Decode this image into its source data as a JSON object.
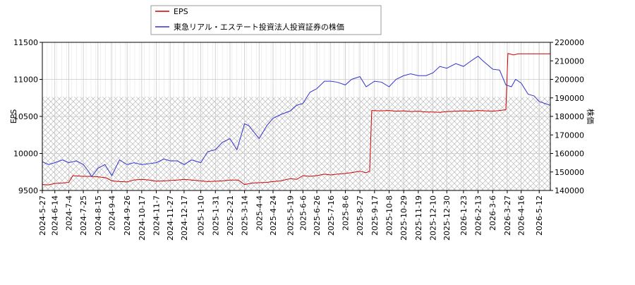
{
  "chart_data": {
    "type": "line",
    "legend": {
      "placement": "top-left",
      "entries": [
        {
          "label": "EPS",
          "color": "#cc0000"
        },
        {
          "label": "東急リアル・エステート投資法人投資証券の株価",
          "color": "#3333cc"
        }
      ]
    },
    "ylabel_left": "EPS",
    "ylabel_right": "株価",
    "ylim_left": [
      9500,
      11500
    ],
    "ylim_right": [
      140000,
      220000
    ],
    "yticks_left": [
      "9500",
      "10000",
      "10500",
      "11000",
      "11500"
    ],
    "yticks_right": [
      "140000",
      "150000",
      "160000",
      "170000",
      "180000",
      "190000",
      "200000",
      "210000",
      "220000"
    ],
    "xlim": [
      "2024-05-27",
      "2026-05-28"
    ],
    "xticks": [
      "2024-5-27",
      "2024-6-14",
      "2024-7-4",
      "2024-7-25",
      "2024-8-15",
      "2024-9-4",
      "2024-9-26",
      "2024-10-17",
      "2024-11-7",
      "2024-11-27",
      "2024-12-17",
      "2025-1-10",
      "2025-1-31",
      "2025-2-21",
      "2025-3-14",
      "2025-4-4",
      "2025-4-24",
      "2025-5-19",
      "2025-6-6",
      "2025-6-26",
      "2025-7-16",
      "2025-8-6",
      "2025-8-27",
      "2025-9-17",
      "2025-10-8",
      "2025-10-29",
      "2025-11-19",
      "2025-12-10",
      "2025-12-30",
      "2026-1-23",
      "2026-2-13",
      "2026-3-6",
      "2026-3-27",
      "2026-4-16",
      "2026-5-12"
    ],
    "grid": true,
    "hatched_band_right": [
      140000,
      190500
    ],
    "series": [
      {
        "name": "EPS",
        "color": "#cc0000",
        "axis": "left",
        "points": [
          [
            "2024-05-27",
            9580
          ],
          [
            "2024-06-05",
            9575
          ],
          [
            "2024-06-14",
            9595
          ],
          [
            "2024-06-25",
            9600
          ],
          [
            "2024-07-04",
            9610
          ],
          [
            "2024-07-10",
            9700
          ],
          [
            "2024-07-25",
            9690
          ],
          [
            "2024-08-05",
            9690
          ],
          [
            "2024-08-15",
            9685
          ],
          [
            "2024-08-27",
            9670
          ],
          [
            "2024-09-04",
            9630
          ],
          [
            "2024-09-15",
            9620
          ],
          [
            "2024-09-26",
            9615
          ],
          [
            "2024-10-05",
            9640
          ],
          [
            "2024-10-17",
            9650
          ],
          [
            "2024-10-28",
            9640
          ],
          [
            "2024-11-07",
            9625
          ],
          [
            "2024-11-18",
            9630
          ],
          [
            "2024-11-27",
            9635
          ],
          [
            "2024-12-07",
            9640
          ],
          [
            "2024-12-17",
            9650
          ],
          [
            "2024-12-28",
            9640
          ],
          [
            "2025-01-10",
            9630
          ],
          [
            "2025-01-20",
            9620
          ],
          [
            "2025-01-31",
            9625
          ],
          [
            "2025-02-10",
            9630
          ],
          [
            "2025-02-21",
            9640
          ],
          [
            "2025-03-05",
            9640
          ],
          [
            "2025-03-14",
            9580
          ],
          [
            "2025-03-25",
            9600
          ],
          [
            "2025-04-04",
            9605
          ],
          [
            "2025-04-15",
            9610
          ],
          [
            "2025-04-24",
            9620
          ],
          [
            "2025-05-05",
            9630
          ],
          [
            "2025-05-19",
            9660
          ],
          [
            "2025-05-28",
            9650
          ],
          [
            "2025-06-06",
            9700
          ],
          [
            "2025-06-16",
            9690
          ],
          [
            "2025-06-26",
            9700
          ],
          [
            "2025-07-07",
            9720
          ],
          [
            "2025-07-16",
            9710
          ],
          [
            "2025-07-25",
            9720
          ],
          [
            "2025-08-06",
            9730
          ],
          [
            "2025-08-15",
            9740
          ],
          [
            "2025-08-27",
            9760
          ],
          [
            "2025-09-05",
            9740
          ],
          [
            "2025-09-10",
            9760
          ],
          [
            "2025-09-13",
            10580
          ],
          [
            "2025-09-25",
            10575
          ],
          [
            "2025-10-08",
            10580
          ],
          [
            "2025-10-18",
            10570
          ],
          [
            "2025-10-29",
            10575
          ],
          [
            "2025-11-08",
            10565
          ],
          [
            "2025-11-19",
            10570
          ],
          [
            "2025-11-30",
            10560
          ],
          [
            "2025-12-10",
            10560
          ],
          [
            "2025-12-20",
            10555
          ],
          [
            "2025-12-30",
            10565
          ],
          [
            "2026-01-12",
            10570
          ],
          [
            "2026-01-23",
            10575
          ],
          [
            "2026-02-03",
            10570
          ],
          [
            "2026-02-13",
            10580
          ],
          [
            "2026-02-24",
            10575
          ],
          [
            "2026-03-06",
            10570
          ],
          [
            "2026-03-16",
            10580
          ],
          [
            "2026-03-25",
            10590
          ],
          [
            "2026-03-28",
            11350
          ],
          [
            "2026-04-05",
            11330
          ],
          [
            "2026-04-12",
            11345
          ],
          [
            "2026-04-25",
            11345
          ],
          [
            "2026-05-12",
            11345
          ],
          [
            "2026-05-28",
            11345
          ]
        ]
      },
      {
        "name": "東急リアル・エステート投資法人投資証券の株価",
        "color": "#3333cc",
        "axis": "right",
        "points": [
          [
            "2024-05-27",
            155500
          ],
          [
            "2024-06-05",
            154000
          ],
          [
            "2024-06-14",
            155000
          ],
          [
            "2024-06-25",
            156500
          ],
          [
            "2024-07-04",
            155000
          ],
          [
            "2024-07-15",
            156000
          ],
          [
            "2024-07-25",
            154000
          ],
          [
            "2024-08-02",
            150000
          ],
          [
            "2024-08-06",
            147500
          ],
          [
            "2024-08-15",
            152000
          ],
          [
            "2024-08-25",
            154000
          ],
          [
            "2024-09-04",
            148000
          ],
          [
            "2024-09-15",
            156500
          ],
          [
            "2024-09-26",
            154000
          ],
          [
            "2024-10-06",
            155000
          ],
          [
            "2024-10-17",
            154000
          ],
          [
            "2024-10-28",
            154500
          ],
          [
            "2024-11-07",
            155000
          ],
          [
            "2024-11-18",
            157000
          ],
          [
            "2024-11-27",
            156000
          ],
          [
            "2024-12-07",
            156000
          ],
          [
            "2024-12-17",
            154000
          ],
          [
            "2024-12-28",
            156500
          ],
          [
            "2025-01-10",
            155000
          ],
          [
            "2025-01-20",
            161000
          ],
          [
            "2025-01-31",
            162000
          ],
          [
            "2025-02-10",
            166000
          ],
          [
            "2025-02-21",
            168000
          ],
          [
            "2025-03-03",
            162000
          ],
          [
            "2025-03-14",
            176000
          ],
          [
            "2025-03-20",
            175000
          ],
          [
            "2025-04-04",
            168000
          ],
          [
            "2025-04-15",
            175000
          ],
          [
            "2025-04-24",
            179000
          ],
          [
            "2025-05-05",
            181000
          ],
          [
            "2025-05-19",
            183000
          ],
          [
            "2025-05-28",
            186000
          ],
          [
            "2025-06-06",
            187000
          ],
          [
            "2025-06-16",
            193000
          ],
          [
            "2025-06-26",
            195000
          ],
          [
            "2025-07-07",
            199000
          ],
          [
            "2025-07-16",
            199000
          ],
          [
            "2025-07-25",
            198500
          ],
          [
            "2025-08-06",
            197000
          ],
          [
            "2025-08-15",
            200000
          ],
          [
            "2025-08-27",
            201500
          ],
          [
            "2025-09-05",
            196000
          ],
          [
            "2025-09-17",
            199000
          ],
          [
            "2025-09-27",
            198500
          ],
          [
            "2025-10-08",
            196000
          ],
          [
            "2025-10-18",
            200000
          ],
          [
            "2025-10-29",
            202000
          ],
          [
            "2025-11-08",
            203000
          ],
          [
            "2025-11-19",
            202000
          ],
          [
            "2025-11-30",
            202000
          ],
          [
            "2025-12-10",
            203500
          ],
          [
            "2025-12-20",
            207000
          ],
          [
            "2025-12-30",
            206000
          ],
          [
            "2026-01-12",
            208500
          ],
          [
            "2026-01-23",
            207000
          ],
          [
            "2026-02-03",
            210000
          ],
          [
            "2026-02-13",
            212500
          ],
          [
            "2026-02-20",
            210000
          ],
          [
            "2026-03-06",
            205500
          ],
          [
            "2026-03-16",
            205000
          ],
          [
            "2026-03-25",
            197000
          ],
          [
            "2026-04-02",
            196000
          ],
          [
            "2026-04-08",
            200000
          ],
          [
            "2026-04-16",
            198000
          ],
          [
            "2026-04-26",
            192000
          ],
          [
            "2026-05-05",
            191000
          ],
          [
            "2026-05-12",
            188000
          ],
          [
            "2026-05-20",
            187000
          ],
          [
            "2026-05-28",
            186000
          ]
        ]
      }
    ]
  }
}
